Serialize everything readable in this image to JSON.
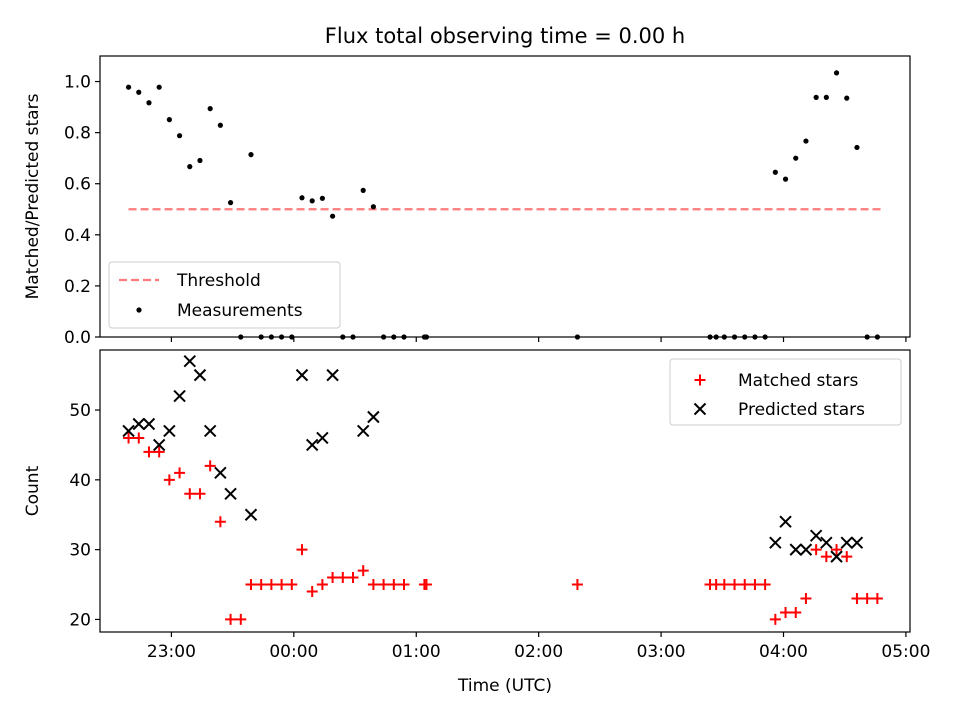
{
  "title": "Flux total observing time = 0.00 h",
  "chart_data": [
    {
      "type": "scatter",
      "panel": "top",
      "ylabel": "Matched/Predicted stars",
      "ylim": [
        0.0,
        1.1
      ],
      "yticks": [
        0.0,
        0.2,
        0.4,
        0.6,
        0.8,
        1.0
      ],
      "ytick_labels": [
        "0.0",
        "0.2",
        "0.4",
        "0.6",
        "0.8",
        "1.0"
      ],
      "xlim": [
        "22:25",
        "05:02"
      ],
      "xticks": [
        "23:00",
        "00:00",
        "01:00",
        "02:00",
        "03:00",
        "04:00",
        "05:00"
      ],
      "show_x_ticklabels": false,
      "grid": false,
      "legend": {
        "placement": "lower-left",
        "entries": [
          "Threshold",
          "Measurements"
        ]
      },
      "series": [
        {
          "name": "Threshold",
          "kind": "dashed-line",
          "color": "#ff7b7b",
          "points": [
            [
              "22:39",
              0.5
            ],
            [
              "04:49",
              0.5
            ]
          ]
        },
        {
          "name": "Measurements",
          "kind": "dot",
          "color": "#000000",
          "points": [
            [
              "22:39",
              0.978
            ],
            [
              "22:44",
              0.958
            ],
            [
              "22:49",
              0.917
            ],
            [
              "22:54",
              0.978
            ],
            [
              "22:59",
              0.851
            ],
            [
              "23:04",
              0.788
            ],
            [
              "23:09",
              0.667
            ],
            [
              "23:14",
              0.691
            ],
            [
              "23:19",
              0.894
            ],
            [
              "23:24",
              0.829
            ],
            [
              "23:29",
              0.526
            ],
            [
              "23:34",
              0.0
            ],
            [
              "23:39",
              0.714
            ],
            [
              "23:44",
              0.0
            ],
            [
              "23:49",
              0.0
            ],
            [
              "23:54",
              0.0
            ],
            [
              "23:59",
              0.0
            ],
            [
              "00:04",
              0.545
            ],
            [
              "00:09",
              0.533
            ],
            [
              "00:14",
              0.543
            ],
            [
              "00:19",
              0.473
            ],
            [
              "00:24",
              0.0
            ],
            [
              "00:29",
              0.0
            ],
            [
              "00:34",
              0.574
            ],
            [
              "00:39",
              0.51
            ],
            [
              "00:44",
              0.0
            ],
            [
              "00:49",
              0.0
            ],
            [
              "00:54",
              0.0
            ],
            [
              "01:04",
              0.0
            ],
            [
              "01:05",
              0.0
            ],
            [
              "02:19",
              0.0
            ],
            [
              "03:24",
              0.0
            ],
            [
              "03:27",
              0.0
            ],
            [
              "03:31",
              0.0
            ],
            [
              "03:36",
              0.0
            ],
            [
              "03:41",
              0.0
            ],
            [
              "03:46",
              0.0
            ],
            [
              "03:51",
              0.0
            ],
            [
              "03:56",
              0.645
            ],
            [
              "04:01",
              0.618
            ],
            [
              "04:06",
              0.7
            ],
            [
              "04:11",
              0.767
            ],
            [
              "04:16",
              0.938
            ],
            [
              "04:21",
              0.938
            ],
            [
              "04:26",
              1.034
            ],
            [
              "04:31",
              0.935
            ],
            [
              "04:36",
              0.742
            ],
            [
              "04:41",
              0.0
            ],
            [
              "04:46",
              0.0
            ]
          ]
        }
      ]
    },
    {
      "type": "scatter",
      "panel": "bottom",
      "xlabel": "Time (UTC)",
      "ylabel": "Count",
      "ylim": [
        18.2,
        58.6
      ],
      "yticks": [
        20,
        30,
        40,
        50
      ],
      "ytick_labels": [
        "20",
        "30",
        "40",
        "50"
      ],
      "xlim": [
        "22:25",
        "05:02"
      ],
      "xticks": [
        "23:00",
        "00:00",
        "01:00",
        "02:00",
        "03:00",
        "04:00",
        "05:00"
      ],
      "xtick_labels": [
        "23:00",
        "00:00",
        "01:00",
        "02:00",
        "03:00",
        "04:00",
        "05:00"
      ],
      "grid": false,
      "legend": {
        "placement": "top-right",
        "entries": [
          "Matched stars",
          "Predicted stars"
        ]
      },
      "series": [
        {
          "name": "Matched stars",
          "marker": "plus",
          "color": "#ff0000",
          "points": [
            [
              "22:39",
              46
            ],
            [
              "22:44",
              46
            ],
            [
              "22:49",
              44
            ],
            [
              "22:54",
              44
            ],
            [
              "22:59",
              40
            ],
            [
              "23:04",
              41
            ],
            [
              "23:09",
              38
            ],
            [
              "23:14",
              38
            ],
            [
              "23:19",
              42
            ],
            [
              "23:24",
              34
            ],
            [
              "23:29",
              20
            ],
            [
              "23:34",
              20
            ],
            [
              "23:39",
              25
            ],
            [
              "23:44",
              25
            ],
            [
              "23:49",
              25
            ],
            [
              "23:54",
              25
            ],
            [
              "23:59",
              25
            ],
            [
              "00:04",
              30
            ],
            [
              "00:09",
              24
            ],
            [
              "00:14",
              25
            ],
            [
              "00:19",
              26
            ],
            [
              "00:24",
              26
            ],
            [
              "00:29",
              26
            ],
            [
              "00:34",
              27
            ],
            [
              "00:39",
              25
            ],
            [
              "00:44",
              25
            ],
            [
              "00:49",
              25
            ],
            [
              "00:54",
              25
            ],
            [
              "01:04",
              25
            ],
            [
              "01:05",
              25
            ],
            [
              "02:19",
              25
            ],
            [
              "03:24",
              25
            ],
            [
              "03:27",
              25
            ],
            [
              "03:31",
              25
            ],
            [
              "03:36",
              25
            ],
            [
              "03:41",
              25
            ],
            [
              "03:46",
              25
            ],
            [
              "03:51",
              25
            ],
            [
              "03:56",
              20
            ],
            [
              "04:01",
              21
            ],
            [
              "04:06",
              21
            ],
            [
              "04:11",
              23
            ],
            [
              "04:16",
              30
            ],
            [
              "04:21",
              29
            ],
            [
              "04:26",
              30
            ],
            [
              "04:31",
              29
            ],
            [
              "04:36",
              23
            ],
            [
              "04:41",
              23
            ],
            [
              "04:46",
              23
            ]
          ]
        },
        {
          "name": "Predicted stars",
          "marker": "x",
          "color": "#000000",
          "points": [
            [
              "22:39",
              47
            ],
            [
              "22:44",
              48
            ],
            [
              "22:49",
              48
            ],
            [
              "22:54",
              45
            ],
            [
              "22:59",
              47
            ],
            [
              "23:04",
              52
            ],
            [
              "23:09",
              57
            ],
            [
              "23:14",
              55
            ],
            [
              "23:19",
              47
            ],
            [
              "23:24",
              41
            ],
            [
              "23:29",
              38
            ],
            [
              "23:39",
              35
            ],
            [
              "00:04",
              55
            ],
            [
              "00:09",
              45
            ],
            [
              "00:14",
              46
            ],
            [
              "00:19",
              55
            ],
            [
              "00:34",
              47
            ],
            [
              "00:39",
              49
            ],
            [
              "03:56",
              31
            ],
            [
              "04:01",
              34
            ],
            [
              "04:06",
              30
            ],
            [
              "04:11",
              30
            ],
            [
              "04:16",
              32
            ],
            [
              "04:21",
              31
            ],
            [
              "04:26",
              29
            ],
            [
              "04:31",
              31
            ],
            [
              "04:36",
              31
            ]
          ]
        }
      ]
    }
  ]
}
